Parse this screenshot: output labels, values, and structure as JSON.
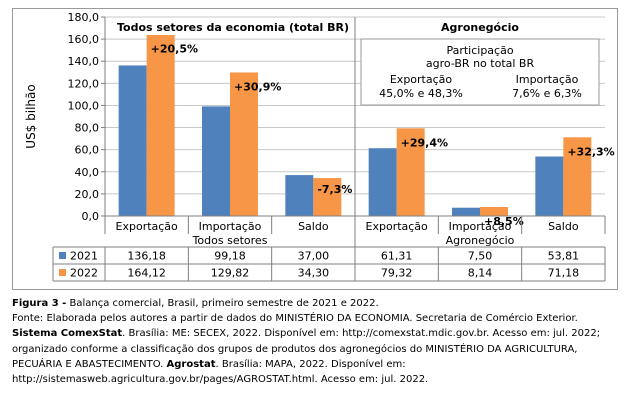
{
  "chart_data": {
    "type": "bar",
    "ylabel": "US$ bilhão",
    "ylim": [
      0,
      180
    ],
    "yticks": [
      "0,0",
      "20,0",
      "40,0",
      "60,0",
      "80,0",
      "100,0",
      "120,0",
      "140,0",
      "160,0",
      "180,0"
    ],
    "groups": [
      {
        "title": "Todos setores da economia (total BR)",
        "label": "Todos setores",
        "categories": [
          "Exportação",
          "Importação",
          "Saldo"
        ],
        "changes": [
          "+20,5%",
          "+30,9%",
          "-7,3%"
        ]
      },
      {
        "title": "Agronegócio",
        "label": "Agronegócio",
        "categories": [
          "Exportação",
          "Importação",
          "Saldo"
        ],
        "changes": [
          "+29,4%",
          "+8,5%",
          "+32,3%"
        ]
      }
    ],
    "series": [
      {
        "name": "2021",
        "color": "#4f81bd",
        "values": [
          136.18,
          99.18,
          37.0,
          61.31,
          7.5,
          53.81
        ],
        "labels": [
          "136,18",
          "99,18",
          "37,00",
          "61,31",
          "7,50",
          "53,81"
        ]
      },
      {
        "name": "2022",
        "color": "#f79646",
        "values": [
          164.12,
          129.82,
          34.3,
          79.32,
          8.14,
          71.18
        ],
        "labels": [
          "164,12",
          "129,82",
          "34,30",
          "79,32",
          "8,14",
          "71,18"
        ]
      }
    ],
    "participation": {
      "title_line1": "Participação",
      "title_line2": "agro-BR no total BR",
      "export_label": "Exportação",
      "export_value": "45,0% e 48,3%",
      "import_label": "Importação",
      "import_value": "7,6% e 6,3%"
    },
    "grid": true
  },
  "caption": {
    "figure_label": "Figura 3 -",
    "figure_text": " Balança comercial, Brasil, primeiro semestre de 2021 e 2022.",
    "source_1": "Fonte: Elaborada pelos autores a partir de dados do MINISTÉRIO DA ECONOMIA. Secretaria de Comércio Exterior. ",
    "source_bold_1": "Sistema ComexStat",
    "source_2": ". Brasília: ME: SECEX, 2022. Disponível em: http://comexstat.mdic.gov.br. Acesso em: jul. 2022; organizado conforme a classificação dos grupos de produtos dos agronegócios do MINISTÉRIO DA AGRICULTURA, PECUÁRIA E ABASTECIMENTO. ",
    "source_bold_2": "Agrostat",
    "source_3": ". Brasília: MAPA, 2022. Disponível em: http://sistemasweb.agricultura.gov.br/pages/AGROSTAT.html. Acesso em: jul. 2022."
  }
}
